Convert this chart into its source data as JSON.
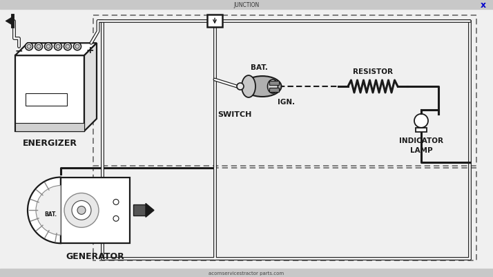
{
  "bg_color": "#f0f0f0",
  "diagram_bg": "#ffffff",
  "line_color": "#1a1a1a",
  "gray_mid": "#888888",
  "gray_light": "#cccccc",
  "gray_dark": "#444444",
  "blue_x": "#0000cc",
  "header_bg": "#c8c8c8",
  "lw": 1.5,
  "lw2": 2.2,
  "lw3": 1.0,
  "labels": {
    "energizer": "ENERGIZER",
    "generator": "GENERATOR",
    "switch_label": "SWITCH",
    "bat": "BAT.",
    "ign": "IGN.",
    "resistor": "RESISTOR",
    "indicator": "INDICATOR\nLAMP"
  }
}
